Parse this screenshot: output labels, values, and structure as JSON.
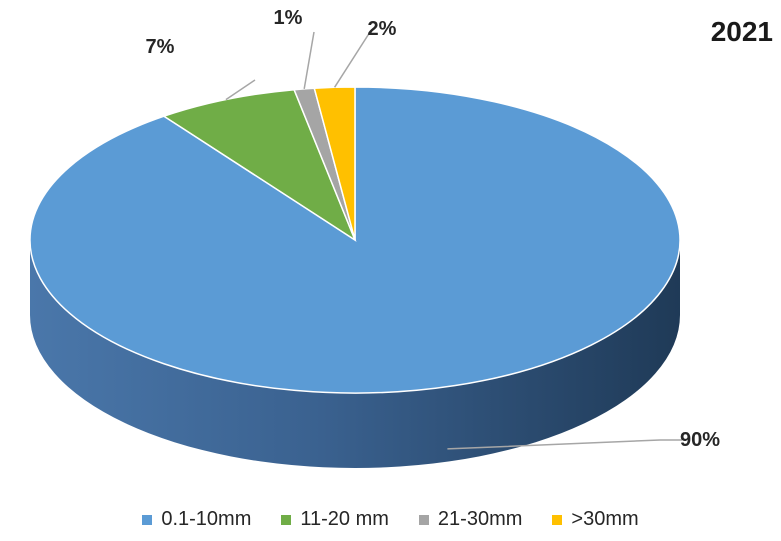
{
  "chart_data": {
    "type": "pie",
    "title": "2021",
    "categories": [
      "0.1-10mm",
      "11-20 mm",
      "21-30mm",
      ">30mm"
    ],
    "values": [
      90,
      7,
      1,
      2
    ],
    "labels": [
      "90%",
      "7%",
      "1%",
      "2%"
    ],
    "colors": [
      "#5b9bd5",
      "#70ad47",
      "#a5a5a5",
      "#ffc000"
    ],
    "legend_position": "bottom",
    "style": "3d"
  }
}
